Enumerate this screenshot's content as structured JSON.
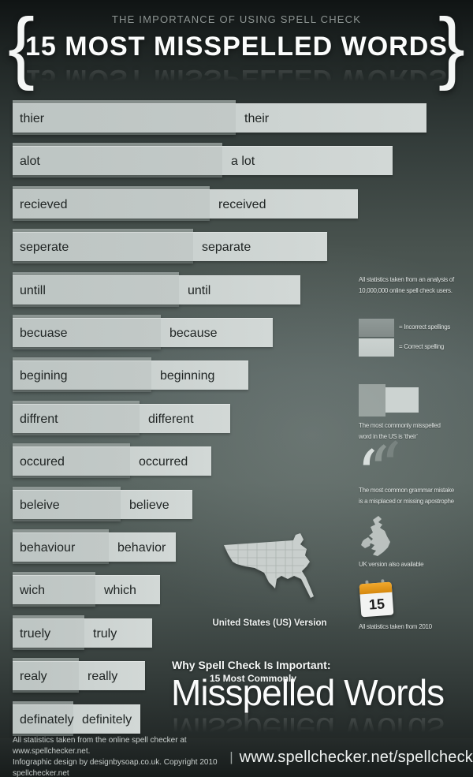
{
  "header": {
    "subtitle": "THE IMPORTANCE OF USING SPELL CHECK",
    "title": "15 MOST MISSPELLED WORDS",
    "brace_left": "{",
    "brace_right": "}"
  },
  "chart_data": {
    "type": "bar",
    "orientation": "horizontal",
    "title": "15 MOST MISSPELLED WORDS",
    "note": "Bar length represents relative frequency; no numeric axis shown",
    "legend": [
      {
        "label": "= Incorrect spellings",
        "color": "#8a9391"
      },
      {
        "label": "= Correct spelling",
        "color": "#c6cdcb"
      }
    ],
    "pairs": [
      {
        "incorrect": "thier",
        "correct": "their",
        "incorrect_len": 283,
        "correct_len": 525
      },
      {
        "incorrect": "alot",
        "correct": "a lot",
        "incorrect_len": 266,
        "correct_len": 482
      },
      {
        "incorrect": "recieved",
        "correct": "received",
        "incorrect_len": 250,
        "correct_len": 438
      },
      {
        "incorrect": "seperate",
        "correct": "separate",
        "incorrect_len": 229,
        "correct_len": 399
      },
      {
        "incorrect": "untill",
        "correct": "until",
        "incorrect_len": 211,
        "correct_len": 365
      },
      {
        "incorrect": "becuase",
        "correct": "because",
        "incorrect_len": 188,
        "correct_len": 330
      },
      {
        "incorrect": "begining",
        "correct": "beginning",
        "incorrect_len": 176,
        "correct_len": 299
      },
      {
        "incorrect": "diffrent",
        "correct": "different",
        "incorrect_len": 161,
        "correct_len": 276
      },
      {
        "incorrect": "occured",
        "correct": "occurred",
        "incorrect_len": 149,
        "correct_len": 252
      },
      {
        "incorrect": "beleive",
        "correct": "believe",
        "incorrect_len": 137,
        "correct_len": 228
      },
      {
        "incorrect": "behaviour",
        "correct": "behavior",
        "incorrect_len": 122,
        "correct_len": 207
      },
      {
        "incorrect": "wich",
        "correct": "which",
        "incorrect_len": 105,
        "correct_len": 187
      },
      {
        "incorrect": "truely",
        "correct": "truly",
        "incorrect_len": 91,
        "correct_len": 177
      },
      {
        "incorrect": "realy",
        "correct": "really",
        "incorrect_len": 84,
        "correct_len": 168
      },
      {
        "incorrect": "definately",
        "correct": "definitely",
        "incorrect_len": 77,
        "correct_len": 162
      }
    ]
  },
  "sidebar": {
    "stats_note_line1": "All statistics taken from an analysis of",
    "stats_note_line2": "10,000,000 online spell check users.",
    "legend_incorrect": "= Incorrect spellings",
    "legend_correct": "= Correct spelling",
    "misspelled_note_line1": "The most commonly misspelled",
    "misspelled_note_line2": "word in the US is ‘their’",
    "grammar_note_line1": "The most common grammar mistake",
    "grammar_note_line2": "is a misplaced or missing apostrophe",
    "uk_note": "UK version also available",
    "calendar_day": "15",
    "calendar_note": "All statistics taken from 2010",
    "apostrophe_glyph": "‘"
  },
  "map_section": {
    "caption": "United States (US) Version"
  },
  "bottom_title": {
    "line1": "Why Spell Check Is Important:",
    "line2": "15 Most Commonly",
    "line3": "Misspelled Words"
  },
  "footer": {
    "left_line1": "All statistics taken from the online spell checker at www.spellchecker.net.",
    "left_line2": "Infographic design by designbysoap.co.uk. Copyright 2010 spellchecker.net",
    "divider": "|",
    "url": "www.spellchecker.net/spellcheck"
  }
}
